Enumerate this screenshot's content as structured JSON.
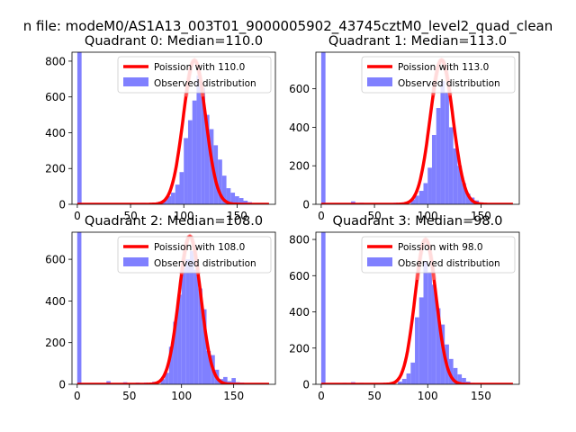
{
  "figure": {
    "suptitle": "n file: modeM0/AS1A13_003T01_9000005902_43745cztM0_level2_quad_clean"
  },
  "chart_data": [
    {
      "type": "bar",
      "title": "Quadrant 0: Median=110.0",
      "xlim": [
        -5,
        186
      ],
      "ylim": [
        0,
        850
      ],
      "xticks": [
        0,
        50,
        100,
        150
      ],
      "yticks": [
        0,
        200,
        400,
        600,
        800
      ],
      "legend": {
        "position": "top-right",
        "entries": [
          "Poission with 110.0",
          "Observed distribution"
        ]
      },
      "colors": {
        "histogram": "#8080ff",
        "poisson": "#ff0000"
      },
      "median": 110.0,
      "bin_width": 4,
      "histogram": [
        [
          0,
          850
        ],
        [
          24,
          3
        ],
        [
          32,
          3
        ],
        [
          44,
          3
        ],
        [
          52,
          5
        ],
        [
          60,
          8
        ],
        [
          68,
          8
        ],
        [
          76,
          15
        ],
        [
          80,
          25
        ],
        [
          84,
          45
        ],
        [
          88,
          65
        ],
        [
          92,
          110
        ],
        [
          96,
          180
        ],
        [
          100,
          370
        ],
        [
          104,
          470
        ],
        [
          108,
          580
        ],
        [
          112,
          720
        ],
        [
          116,
          650
        ],
        [
          120,
          500
        ],
        [
          124,
          420
        ],
        [
          128,
          330
        ],
        [
          132,
          250
        ],
        [
          136,
          160
        ],
        [
          140,
          90
        ],
        [
          144,
          65
        ],
        [
          148,
          45
        ],
        [
          152,
          35
        ],
        [
          156,
          20
        ],
        [
          160,
          12
        ],
        [
          164,
          6
        ],
        [
          168,
          3
        ]
      ],
      "poisson_peak": 805
    },
    {
      "type": "bar",
      "title": "Quadrant 1: Median=113.0",
      "xlim": [
        -5,
        186
      ],
      "ylim": [
        0,
        790
      ],
      "xticks": [
        0,
        50,
        100,
        150
      ],
      "yticks": [
        0,
        200,
        400,
        600
      ],
      "legend": {
        "position": "top-right",
        "entries": [
          "Poission with 113.0",
          "Observed distribution"
        ]
      },
      "colors": {
        "histogram": "#8080ff",
        "poisson": "#ff0000"
      },
      "median": 113.0,
      "bin_width": 4,
      "histogram": [
        [
          0,
          790
        ],
        [
          28,
          15
        ],
        [
          36,
          8
        ],
        [
          48,
          5
        ],
        [
          56,
          5
        ],
        [
          68,
          8
        ],
        [
          76,
          10
        ],
        [
          84,
          25
        ],
        [
          88,
          45
        ],
        [
          92,
          70
        ],
        [
          96,
          110
        ],
        [
          100,
          190
        ],
        [
          104,
          360
        ],
        [
          108,
          500
        ],
        [
          112,
          640
        ],
        [
          116,
          580
        ],
        [
          120,
          400
        ],
        [
          124,
          290
        ],
        [
          128,
          200
        ],
        [
          132,
          110
        ],
        [
          136,
          55
        ],
        [
          140,
          35
        ],
        [
          144,
          20
        ],
        [
          148,
          10
        ],
        [
          152,
          5
        ]
      ],
      "poisson_peak": 750
    },
    {
      "type": "bar",
      "title": "Quadrant 2: Median=108.0",
      "xlim": [
        -5,
        190
      ],
      "ylim": [
        0,
        730
      ],
      "xticks": [
        0,
        50,
        100,
        150
      ],
      "yticks": [
        0,
        200,
        400,
        600
      ],
      "legend": {
        "position": "top-right",
        "entries": [
          "Poission with 108.0",
          "Observed distribution"
        ]
      },
      "colors": {
        "histogram": "#8080ff",
        "poisson": "#ff0000"
      },
      "median": 108.0,
      "bin_width": 4,
      "histogram": [
        [
          0,
          730
        ],
        [
          28,
          15
        ],
        [
          44,
          10
        ],
        [
          56,
          8
        ],
        [
          64,
          8
        ],
        [
          72,
          12
        ],
        [
          80,
          25
        ],
        [
          84,
          55
        ],
        [
          88,
          180
        ],
        [
          92,
          300
        ],
        [
          96,
          430
        ],
        [
          100,
          560
        ],
        [
          104,
          600
        ],
        [
          108,
          640
        ],
        [
          112,
          550
        ],
        [
          116,
          460
        ],
        [
          120,
          360
        ],
        [
          124,
          160
        ],
        [
          128,
          140
        ],
        [
          132,
          70
        ],
        [
          136,
          25
        ],
        [
          140,
          35
        ],
        [
          144,
          15
        ],
        [
          148,
          30
        ],
        [
          152,
          10
        ],
        [
          156,
          8
        ],
        [
          160,
          5
        ]
      ],
      "poisson_peak": 710
    },
    {
      "type": "bar",
      "title": "Quadrant 3: Median=98.0",
      "xlim": [
        -5,
        186
      ],
      "ylim": [
        0,
        840
      ],
      "xticks": [
        0,
        50,
        100,
        150
      ],
      "yticks": [
        0,
        200,
        400,
        600,
        800
      ],
      "legend": {
        "position": "top-right",
        "entries": [
          "Poission with 98.0",
          "Observed distribution"
        ]
      },
      "colors": {
        "histogram": "#8080ff",
        "poisson": "#ff0000"
      },
      "median": 98.0,
      "bin_width": 4,
      "histogram": [
        [
          0,
          840
        ],
        [
          20,
          8
        ],
        [
          28,
          12
        ],
        [
          36,
          8
        ],
        [
          48,
          5
        ],
        [
          56,
          8
        ],
        [
          64,
          10
        ],
        [
          72,
          15
        ],
        [
          76,
          30
        ],
        [
          80,
          60
        ],
        [
          84,
          120
        ],
        [
          88,
          370
        ],
        [
          92,
          480
        ],
        [
          96,
          680
        ],
        [
          100,
          620
        ],
        [
          104,
          550
        ],
        [
          108,
          420
        ],
        [
          112,
          330
        ],
        [
          116,
          220
        ],
        [
          120,
          140
        ],
        [
          124,
          90
        ],
        [
          128,
          55
        ],
        [
          132,
          35
        ],
        [
          136,
          15
        ],
        [
          140,
          8
        ]
      ],
      "poisson_peak": 800
    }
  ]
}
